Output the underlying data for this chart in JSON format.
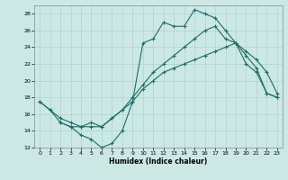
{
  "xlabel": "Humidex (Indice chaleur)",
  "bg_color": "#cce8e5",
  "line_color": "#1a6e66",
  "grid_color": "#aad4d0",
  "xlim": [
    -0.5,
    23.5
  ],
  "ylim": [
    12,
    29
  ],
  "yticks": [
    12,
    14,
    16,
    18,
    20,
    22,
    24,
    26,
    28
  ],
  "xticks": [
    0,
    1,
    2,
    3,
    4,
    5,
    6,
    7,
    8,
    9,
    10,
    11,
    12,
    13,
    14,
    15,
    16,
    17,
    18,
    19,
    20,
    21,
    22,
    23
  ],
  "curve1_x": [
    0,
    1,
    2,
    3,
    4,
    5,
    6,
    7,
    8,
    9,
    10,
    11,
    12,
    13,
    14,
    15,
    16,
    17,
    18,
    19,
    20,
    21,
    22,
    23
  ],
  "curve1_y": [
    17.5,
    16.5,
    15.0,
    14.5,
    13.5,
    13.0,
    12.0,
    12.5,
    14.0,
    17.5,
    24.5,
    25.0,
    27.0,
    26.5,
    26.5,
    28.5,
    28.0,
    27.5,
    26.0,
    24.5,
    22.0,
    21.0,
    18.5,
    18.0
  ],
  "curve2_x": [
    2,
    3,
    4,
    5,
    6,
    7,
    8,
    9,
    10,
    11,
    12,
    13,
    14,
    15,
    16,
    17,
    18,
    19,
    20,
    21,
    22,
    23
  ],
  "curve2_y": [
    15.0,
    14.5,
    14.5,
    15.0,
    14.5,
    15.5,
    16.5,
    18.0,
    19.5,
    21.0,
    22.0,
    23.0,
    24.0,
    25.0,
    26.0,
    26.5,
    25.0,
    24.5,
    23.0,
    21.5,
    18.5,
    18.0
  ],
  "curve3_x": [
    0,
    1,
    2,
    3,
    4,
    5,
    6,
    7,
    8,
    9,
    10,
    11,
    12,
    13,
    14,
    15,
    16,
    17,
    18,
    19,
    20,
    21,
    22,
    23
  ],
  "curve3_y": [
    17.5,
    16.5,
    15.5,
    15.0,
    14.5,
    14.5,
    14.5,
    15.5,
    16.5,
    17.5,
    19.0,
    20.0,
    21.0,
    21.5,
    22.0,
    22.5,
    23.0,
    23.5,
    24.0,
    24.5,
    23.5,
    22.5,
    21.0,
    18.5
  ]
}
